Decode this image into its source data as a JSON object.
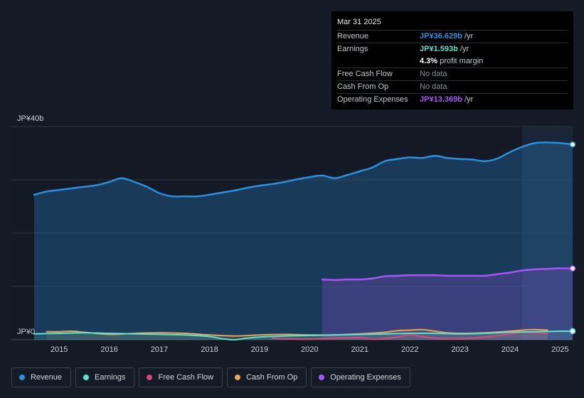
{
  "colors": {
    "revenue": "#2d8fe0",
    "earnings": "#5fe0cf",
    "free_cash_flow": "#d04a7a",
    "cash_from_op": "#e6a45a",
    "operating_expenses": "#a855f7"
  },
  "tooltip": {
    "date": "Mar 31 2025",
    "rows": [
      {
        "label": "Revenue",
        "value": "JP¥36.629b",
        "unit": "/yr"
      },
      {
        "label": "Earnings",
        "value": "JP¥1.593b",
        "unit": "/yr"
      },
      {
        "label": "",
        "value": "4.3%",
        "unit": "profit margin"
      },
      {
        "label": "Free Cash Flow",
        "value": "No data",
        "unit": ""
      },
      {
        "label": "Cash From Op",
        "value": "No data",
        "unit": ""
      },
      {
        "label": "Operating Expenses",
        "value": "JP¥13.369b",
        "unit": "/yr"
      }
    ]
  },
  "legend": [
    {
      "label": "Revenue",
      "key": "revenue"
    },
    {
      "label": "Earnings",
      "key": "earnings"
    },
    {
      "label": "Free Cash Flow",
      "key": "free_cash_flow"
    },
    {
      "label": "Cash From Op",
      "key": "cash_from_op"
    },
    {
      "label": "Operating Expenses",
      "key": "operating_expenses"
    }
  ],
  "chart_data": {
    "type": "area",
    "title": "",
    "y_top_label": "JP¥40b",
    "y_bottom_label": "JP¥0",
    "ylim": [
      0,
      40
    ],
    "xlim": [
      2014.5,
      2025.25
    ],
    "x_ticks": [
      "2015",
      "2016",
      "2017",
      "2018",
      "2019",
      "2020",
      "2021",
      "2022",
      "2023",
      "2024",
      "2025"
    ],
    "series": [
      {
        "name": "Revenue",
        "key": "revenue",
        "x": [
          2014.5,
          2014.75,
          2015.0,
          2015.25,
          2015.5,
          2015.75,
          2016.0,
          2016.25,
          2016.5,
          2016.75,
          2017.0,
          2017.25,
          2017.5,
          2017.75,
          2018.0,
          2018.25,
          2018.5,
          2018.75,
          2019.0,
          2019.25,
          2019.5,
          2019.75,
          2020.0,
          2020.25,
          2020.5,
          2020.75,
          2021.0,
          2021.25,
          2021.5,
          2021.75,
          2022.0,
          2022.25,
          2022.5,
          2022.75,
          2023.0,
          2023.25,
          2023.5,
          2023.75,
          2024.0,
          2024.25,
          2024.5,
          2024.75,
          2025.0,
          2025.25
        ],
        "values": [
          27.2,
          27.8,
          28.1,
          28.4,
          28.7,
          29.0,
          29.6,
          30.3,
          29.6,
          28.7,
          27.5,
          26.9,
          26.9,
          26.9,
          27.2,
          27.6,
          28.0,
          28.5,
          28.9,
          29.2,
          29.6,
          30.1,
          30.5,
          30.8,
          30.3,
          30.9,
          31.6,
          32.3,
          33.5,
          33.9,
          34.2,
          34.1,
          34.5,
          34.1,
          33.9,
          33.8,
          33.5,
          34.0,
          35.2,
          36.2,
          36.9,
          37.0,
          36.9,
          36.629
        ]
      },
      {
        "name": "Earnings",
        "key": "earnings",
        "x": [
          2014.5,
          2015.0,
          2015.5,
          2016.0,
          2016.5,
          2017.0,
          2017.5,
          2018.0,
          2018.25,
          2018.5,
          2018.75,
          2019.0,
          2019.5,
          2020.0,
          2020.5,
          2021.0,
          2021.5,
          2022.0,
          2022.5,
          2023.0,
          2023.5,
          2024.0,
          2024.5,
          2025.0,
          2025.25
        ],
        "values": [
          1.1,
          1.2,
          1.3,
          1.2,
          1.1,
          1.0,
          0.9,
          0.6,
          0.2,
          0.0,
          0.3,
          0.5,
          0.7,
          0.8,
          0.9,
          1.0,
          1.1,
          1.2,
          1.2,
          1.1,
          1.2,
          1.4,
          1.5,
          1.6,
          1.593
        ]
      },
      {
        "name": "Free Cash Flow",
        "key": "free_cash_flow",
        "x": [
          2019.25,
          2019.5,
          2020.0,
          2020.5,
          2021.0,
          2021.25,
          2021.5,
          2021.75,
          2022.0,
          2022.25,
          2022.5,
          2022.75,
          2023.0,
          2023.5,
          2024.0,
          2024.25,
          2024.5,
          2024.75
        ],
        "values": [
          0.3,
          0.2,
          0.1,
          0.3,
          0.4,
          0.1,
          0.2,
          0.5,
          0.9,
          0.6,
          0.3,
          0.2,
          0.2,
          0.5,
          1.1,
          1.4,
          1.3,
          1.2
        ]
      },
      {
        "name": "Cash From Op",
        "key": "cash_from_op",
        "x": [
          2014.75,
          2015.0,
          2015.25,
          2015.5,
          2016.0,
          2016.5,
          2017.0,
          2017.5,
          2018.0,
          2018.5,
          2019.0,
          2019.5,
          2020.0,
          2020.5,
          2021.0,
          2021.5,
          2021.75,
          2022.0,
          2022.25,
          2022.5,
          2022.75,
          2023.0,
          2023.5,
          2024.0,
          2024.25,
          2024.5,
          2024.75
        ],
        "values": [
          1.5,
          1.5,
          1.6,
          1.4,
          1.0,
          1.2,
          1.3,
          1.2,
          0.9,
          0.7,
          0.9,
          1.0,
          0.9,
          0.9,
          1.1,
          1.4,
          1.7,
          1.8,
          1.9,
          1.6,
          1.3,
          1.2,
          1.3,
          1.6,
          1.8,
          1.9,
          1.8
        ]
      },
      {
        "name": "Operating Expenses",
        "key": "operating_expenses",
        "x": [
          2020.25,
          2020.5,
          2020.75,
          2021.0,
          2021.25,
          2021.5,
          2021.75,
          2022.0,
          2022.25,
          2022.5,
          2022.75,
          2023.0,
          2023.25,
          2023.5,
          2023.75,
          2024.0,
          2024.25,
          2024.5,
          2024.75,
          2025.0,
          2025.25
        ],
        "values": [
          11.3,
          11.2,
          11.3,
          11.3,
          11.5,
          11.9,
          12.0,
          12.1,
          12.1,
          12.1,
          12.0,
          12.0,
          12.0,
          12.0,
          12.3,
          12.6,
          13.0,
          13.2,
          13.3,
          13.4,
          13.369
        ]
      }
    ]
  }
}
